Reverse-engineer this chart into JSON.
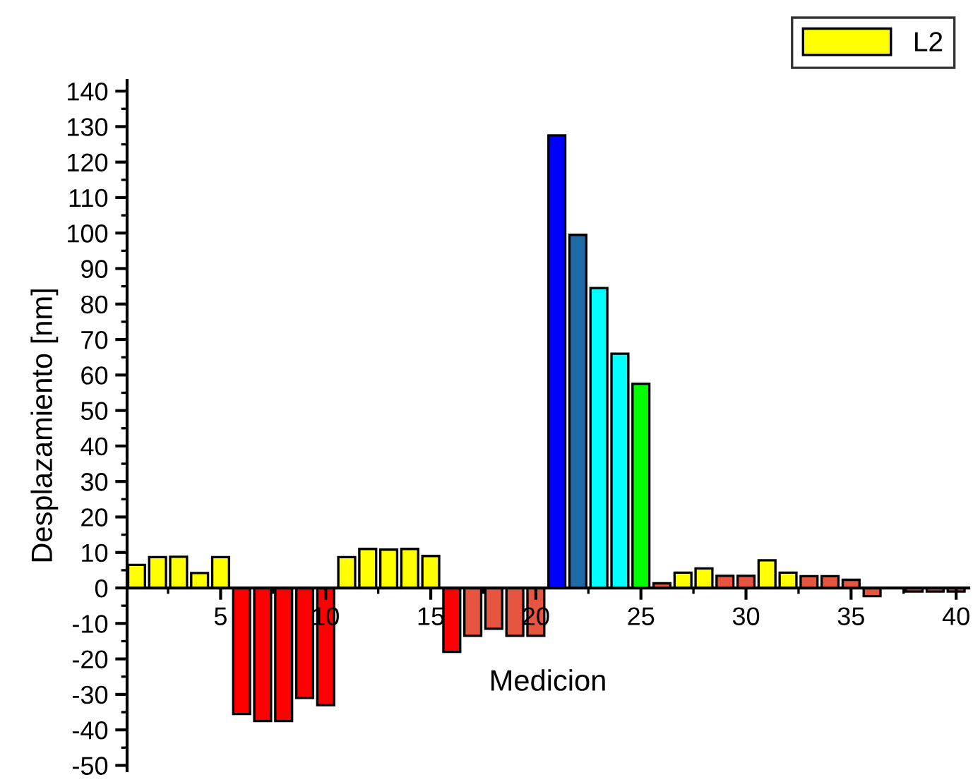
{
  "chart_data": {
    "type": "bar",
    "xlabel": "Medicion",
    "ylabel": "Desplazamiento [nm]",
    "x": [
      1,
      2,
      3,
      4,
      5,
      6,
      7,
      8,
      9,
      10,
      11,
      12,
      13,
      14,
      15,
      16,
      17,
      18,
      19,
      20,
      21,
      22,
      23,
      24,
      25,
      26,
      27,
      28,
      29,
      30,
      31,
      32,
      33,
      34,
      35,
      36,
      37,
      38,
      39,
      40
    ],
    "xlim": [
      0.55,
      40.6
    ],
    "xticks": [
      5,
      10,
      15,
      20,
      25,
      30,
      35,
      40
    ],
    "ylim": [
      -51.5,
      143
    ],
    "yticks": [
      -50,
      -40,
      -30,
      -20,
      -10,
      0,
      10,
      20,
      30,
      40,
      50,
      60,
      70,
      80,
      90,
      100,
      110,
      120,
      130,
      140
    ],
    "legend": "top right",
    "grid": false,
    "series": [
      {
        "name": "L2",
        "color": "#ffff00",
        "values": [
          6.5,
          8.7,
          8.8,
          4.2,
          8.7,
          -35.5,
          -37.5,
          -37.5,
          -31,
          -33,
          8.7,
          11,
          10.8,
          11,
          9,
          -18,
          -13.5,
          -11.5,
          -13.5,
          -13.5,
          127.5,
          99.5,
          84.5,
          66,
          57.5,
          1.3,
          4.3,
          5.5,
          3.4,
          3.4,
          7.8,
          4.3,
          3.3,
          3.3,
          2.3,
          -2.3,
          null,
          -1,
          -1,
          -1
        ],
        "colors": [
          "#ffff00",
          "#ffff00",
          "#ffff00",
          "#ffff00",
          "#ffff00",
          "#ff0000",
          "#ff0000",
          "#ff0000",
          "#ff0000",
          "#ff0000",
          "#ffff00",
          "#ffff00",
          "#ffff00",
          "#ffff00",
          "#ffff00",
          "#ff0000",
          "#e65540",
          "#e65540",
          "#e65540",
          "#e65540",
          "#0000ff",
          "#1f6aa5",
          "#00ffff",
          "#00ffff",
          "#00ff00",
          "#e65540",
          "#ffff00",
          "#ffff00",
          "#e65540",
          "#e65540",
          "#ffff00",
          "#ffff00",
          "#e65540",
          "#e65540",
          "#e65540",
          "#e65540",
          "#e65540",
          "#e65540",
          "#e65540",
          "#e65540"
        ]
      }
    ]
  }
}
